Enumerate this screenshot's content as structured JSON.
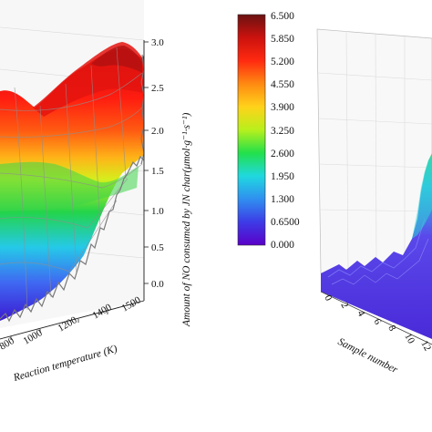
{
  "chart_data": [
    {
      "type": "surface3d",
      "xlabel": "Reaction temperature (K)",
      "x_ticks": [
        "800",
        "1000",
        "1200",
        "1400",
        "1500"
      ],
      "zlabel": "Amount of NO consumed by JN char(μmol·g⁻¹·s⁻¹)",
      "z_ticks": [
        "0.0",
        "0.5",
        "1.0",
        "1.5",
        "2.0",
        "2.5",
        "3.0"
      ],
      "zlim": [
        0,
        3.0
      ],
      "colorscale": [
        "#3b1ad1",
        "#3f6cf0",
        "#27cde6",
        "#22d646",
        "#d9ef1c",
        "#ffc21a",
        "#ff6a10",
        "#ff1c10",
        "#c4100e",
        "#6d1313"
      ]
    },
    {
      "type": "colorbar",
      "ticks": [
        "6.500",
        "5.850",
        "5.200",
        "4.550",
        "3.900",
        "3.250",
        "2.600",
        "1.950",
        "1.300",
        "0.6500",
        "0.000"
      ],
      "range": [
        0,
        6.5
      ]
    },
    {
      "type": "surface3d",
      "xlabel": "Sample number",
      "x_ticks": [
        "0",
        "2",
        "4",
        "6",
        "8",
        "10",
        "12"
      ]
    }
  ]
}
